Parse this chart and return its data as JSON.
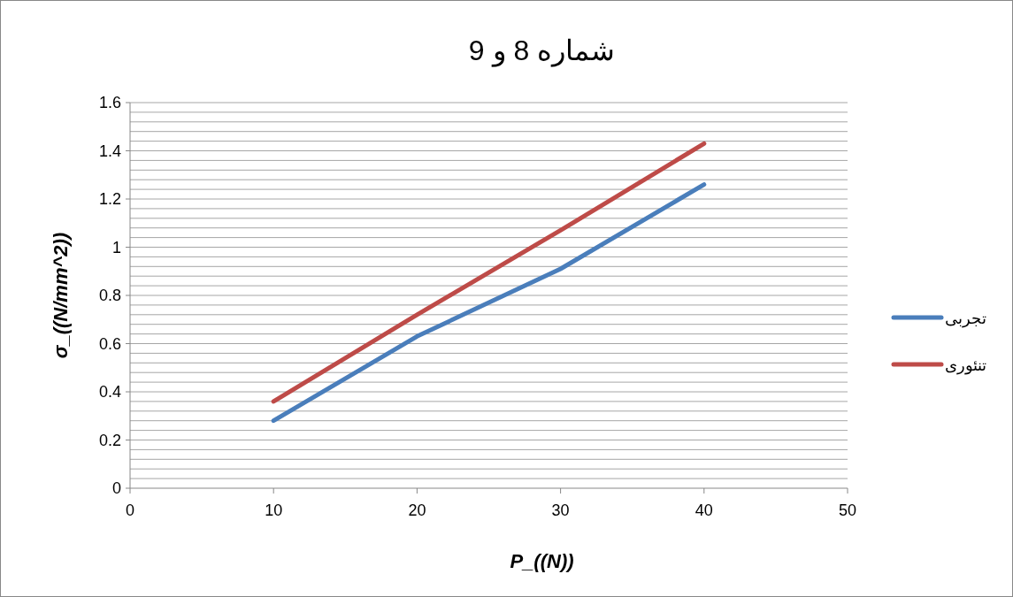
{
  "chart_data": {
    "type": "line",
    "title": "شماره 8 و 9",
    "xlabel": "P_((N))",
    "ylabel": "σ_((N/mm^2))",
    "x": [
      10,
      20,
      30,
      40
    ],
    "series": [
      {
        "name": "تجربی",
        "color": "#4a7ebb",
        "values": [
          0.28,
          0.63,
          0.91,
          1.26
        ]
      },
      {
        "name": "تنئوری",
        "color": "#be4b48",
        "values": [
          0.36,
          0.72,
          1.07,
          1.43
        ]
      }
    ],
    "xlim": [
      0,
      50
    ],
    "xticks": [
      0,
      10,
      20,
      30,
      40,
      50
    ],
    "ylim": [
      0,
      1.6
    ],
    "yticks": [
      0,
      {
        "value": 0.04,
        "label": null
      },
      {
        "value": 0.08,
        "label": null
      },
      {
        "value": 0.12,
        "label": null
      },
      {
        "value": 0.16,
        "label": null
      },
      {
        "value": 0.2,
        "label": "0.2"
      },
      {
        "value": 0.24,
        "label": null
      },
      {
        "value": 0.28,
        "label": null
      },
      {
        "value": 0.32,
        "label": null
      },
      {
        "value": 0.36,
        "label": null
      },
      {
        "value": 0.4,
        "label": "0.4"
      },
      {
        "value": 0.44,
        "label": null
      },
      {
        "value": 0.48,
        "label": null
      },
      {
        "value": 0.52,
        "label": null
      },
      {
        "value": 0.56,
        "label": null
      },
      {
        "value": 0.6,
        "label": "0.6"
      },
      {
        "value": 0.64,
        "label": null
      },
      {
        "value": 0.68,
        "label": null
      },
      {
        "value": 0.72,
        "label": null
      },
      {
        "value": 0.76,
        "label": null
      },
      {
        "value": 0.8,
        "label": "0.8"
      },
      {
        "value": 0.84,
        "label": null
      },
      {
        "value": 0.88,
        "label": null
      },
      {
        "value": 0.92,
        "label": null
      },
      {
        "value": 0.96,
        "label": null
      },
      1,
      {
        "value": 1.04,
        "label": null
      },
      {
        "value": 1.08,
        "label": null
      },
      {
        "value": 1.12,
        "label": null
      },
      {
        "value": 1.16,
        "label": null
      },
      {
        "value": 1.2,
        "label": "1.2"
      },
      {
        "value": 1.24,
        "label": null
      },
      {
        "value": 1.28,
        "label": null
      },
      {
        "value": 1.32,
        "label": null
      },
      {
        "value": 1.36,
        "label": null
      },
      {
        "value": 1.4,
        "label": "1.4"
      },
      {
        "value": 1.44,
        "label": null
      },
      {
        "value": 1.48,
        "label": null
      },
      {
        "value": 1.52,
        "label": null
      },
      {
        "value": 1.56,
        "label": null
      },
      {
        "value": 1.6,
        "label": "1.6"
      }
    ],
    "grid": "y",
    "legend": "right",
    "marker": "none",
    "line_style": "solid"
  }
}
